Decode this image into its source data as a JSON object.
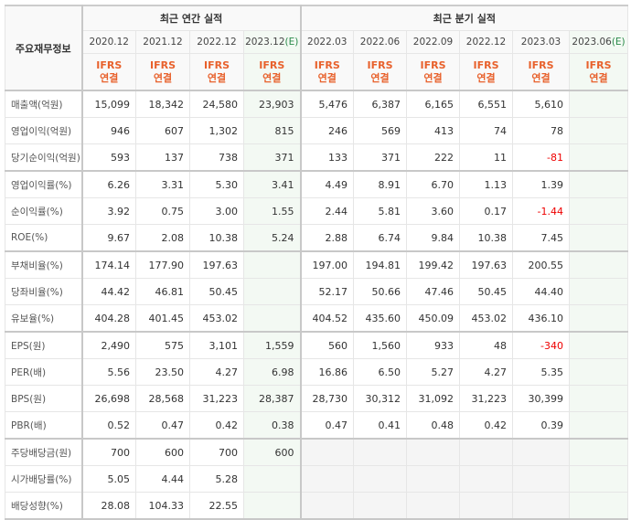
{
  "header": {
    "row_label": "주요재무정보",
    "annual_title": "최근 연간 실적",
    "quarterly_title": "최근 분기 실적",
    "periods": [
      {
        "date": "2020.12",
        "est": ""
      },
      {
        "date": "2021.12",
        "est": ""
      },
      {
        "date": "2022.12",
        "est": ""
      },
      {
        "date": "2023.12",
        "est": "(E)"
      },
      {
        "date": "2022.03",
        "est": ""
      },
      {
        "date": "2022.06",
        "est": ""
      },
      {
        "date": "2022.09",
        "est": ""
      },
      {
        "date": "2022.12",
        "est": ""
      },
      {
        "date": "2023.03",
        "est": ""
      },
      {
        "date": "2023.06",
        "est": "(E)"
      }
    ],
    "basis_line1": "IFRS",
    "basis_line2": "연결"
  },
  "colors": {
    "ifrs": "#e8612c",
    "negative": "#ee0000",
    "estimate_bg": "#f3f9f3",
    "estimate_text": "#2a8a4a"
  },
  "rows": [
    {
      "label": "매출액(억원)",
      "values": [
        "15,099",
        "18,342",
        "24,580",
        "23,903",
        "5,476",
        "6,387",
        "6,165",
        "6,551",
        "5,610",
        ""
      ]
    },
    {
      "label": "영업이익(억원)",
      "values": [
        "946",
        "607",
        "1,302",
        "815",
        "246",
        "569",
        "413",
        "74",
        "78",
        ""
      ]
    },
    {
      "label": "당기순이익(억원)",
      "values": [
        "593",
        "137",
        "738",
        "371",
        "133",
        "371",
        "222",
        "11",
        "-81",
        ""
      ]
    },
    {
      "label": "영업이익률(%)",
      "values": [
        "6.26",
        "3.31",
        "5.30",
        "3.41",
        "4.49",
        "8.91",
        "6.70",
        "1.13",
        "1.39",
        ""
      ]
    },
    {
      "label": "순이익률(%)",
      "values": [
        "3.92",
        "0.75",
        "3.00",
        "1.55",
        "2.44",
        "5.81",
        "3.60",
        "0.17",
        "-1.44",
        ""
      ]
    },
    {
      "label": "ROE(%)",
      "values": [
        "9.67",
        "2.08",
        "10.38",
        "5.24",
        "2.88",
        "6.74",
        "9.84",
        "10.38",
        "7.45",
        ""
      ]
    },
    {
      "label": "부채비율(%)",
      "values": [
        "174.14",
        "177.90",
        "197.63",
        "",
        "197.00",
        "194.81",
        "199.42",
        "197.63",
        "200.55",
        ""
      ]
    },
    {
      "label": "당좌비율(%)",
      "values": [
        "44.42",
        "46.81",
        "50.45",
        "",
        "52.17",
        "50.66",
        "47.46",
        "50.45",
        "44.40",
        ""
      ]
    },
    {
      "label": "유보율(%)",
      "values": [
        "404.28",
        "401.45",
        "453.02",
        "",
        "404.52",
        "435.60",
        "450.09",
        "453.02",
        "436.10",
        ""
      ]
    },
    {
      "label": "EPS(원)",
      "values": [
        "2,490",
        "575",
        "3,101",
        "1,559",
        "560",
        "1,560",
        "933",
        "48",
        "-340",
        ""
      ]
    },
    {
      "label": "PER(배)",
      "values": [
        "5.56",
        "23.50",
        "4.27",
        "6.98",
        "16.86",
        "6.50",
        "5.27",
        "4.27",
        "5.35",
        ""
      ]
    },
    {
      "label": "BPS(원)",
      "values": [
        "26,698",
        "28,568",
        "31,223",
        "28,387",
        "28,730",
        "30,312",
        "31,092",
        "31,223",
        "30,399",
        ""
      ]
    },
    {
      "label": "PBR(배)",
      "values": [
        "0.52",
        "0.47",
        "0.42",
        "0.38",
        "0.47",
        "0.41",
        "0.48",
        "0.42",
        "0.39",
        ""
      ]
    },
    {
      "label": "주당배당금(원)",
      "values": [
        "700",
        "600",
        "700",
        "600",
        "",
        "",
        "",
        "",
        "",
        ""
      ],
      "quarterly_na": true
    },
    {
      "label": "시가배당률(%)",
      "values": [
        "5.05",
        "4.44",
        "5.28",
        "",
        "",
        "",
        "",
        "",
        "",
        ""
      ],
      "quarterly_na": true
    },
    {
      "label": "배당성향(%)",
      "values": [
        "28.08",
        "104.33",
        "22.55",
        "",
        "",
        "",
        "",
        "",
        "",
        ""
      ],
      "quarterly_na": true
    }
  ]
}
